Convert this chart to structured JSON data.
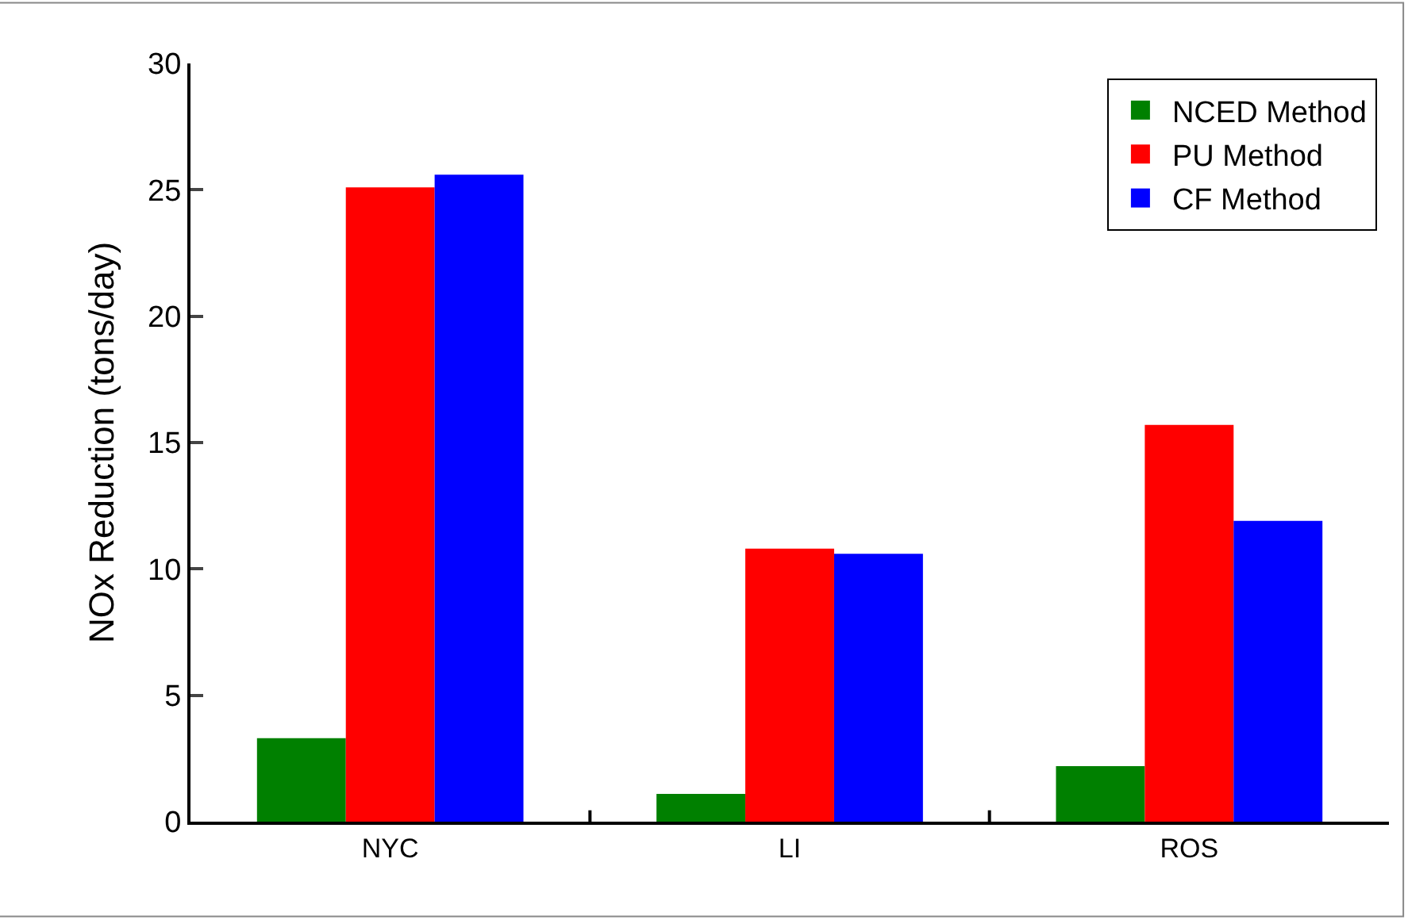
{
  "chart_data": {
    "type": "bar",
    "ylabel": "NOx Reduction (tons/day)",
    "categories": [
      "NYC",
      "LI",
      "ROS"
    ],
    "series": [
      {
        "name": "NCED Method",
        "color": "#008000",
        "values": [
          3.3,
          1.1,
          2.2
        ]
      },
      {
        "name": "PU Method",
        "color": "#ff0000",
        "values": [
          25.1,
          10.8,
          15.7
        ]
      },
      {
        "name": "CF Method",
        "color": "#0000ff",
        "values": [
          25.6,
          10.6,
          11.9
        ]
      }
    ],
    "ylim": [
      0,
      30
    ],
    "yticks": [
      0,
      5,
      10,
      15,
      20,
      25,
      30
    ],
    "legend": "top right"
  }
}
